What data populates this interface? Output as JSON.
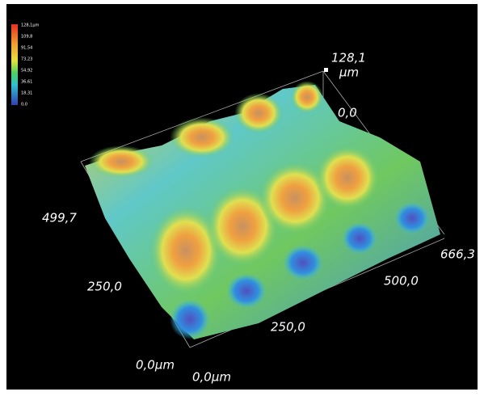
{
  "colorbar": {
    "labels": [
      "128,1μm",
      "109,8",
      "91,54",
      "73,23",
      "54,92",
      "36,61",
      "18,31",
      "0,0"
    ]
  },
  "axes": {
    "z": {
      "max": "128,1",
      "unit": "μm",
      "min": "0,0"
    },
    "y": {
      "labels": [
        "499,7",
        "250,0",
        "0,0μm"
      ]
    },
    "x": {
      "labels": [
        "0,0μm",
        "250,0",
        "500,0",
        "666,3"
      ]
    }
  }
}
